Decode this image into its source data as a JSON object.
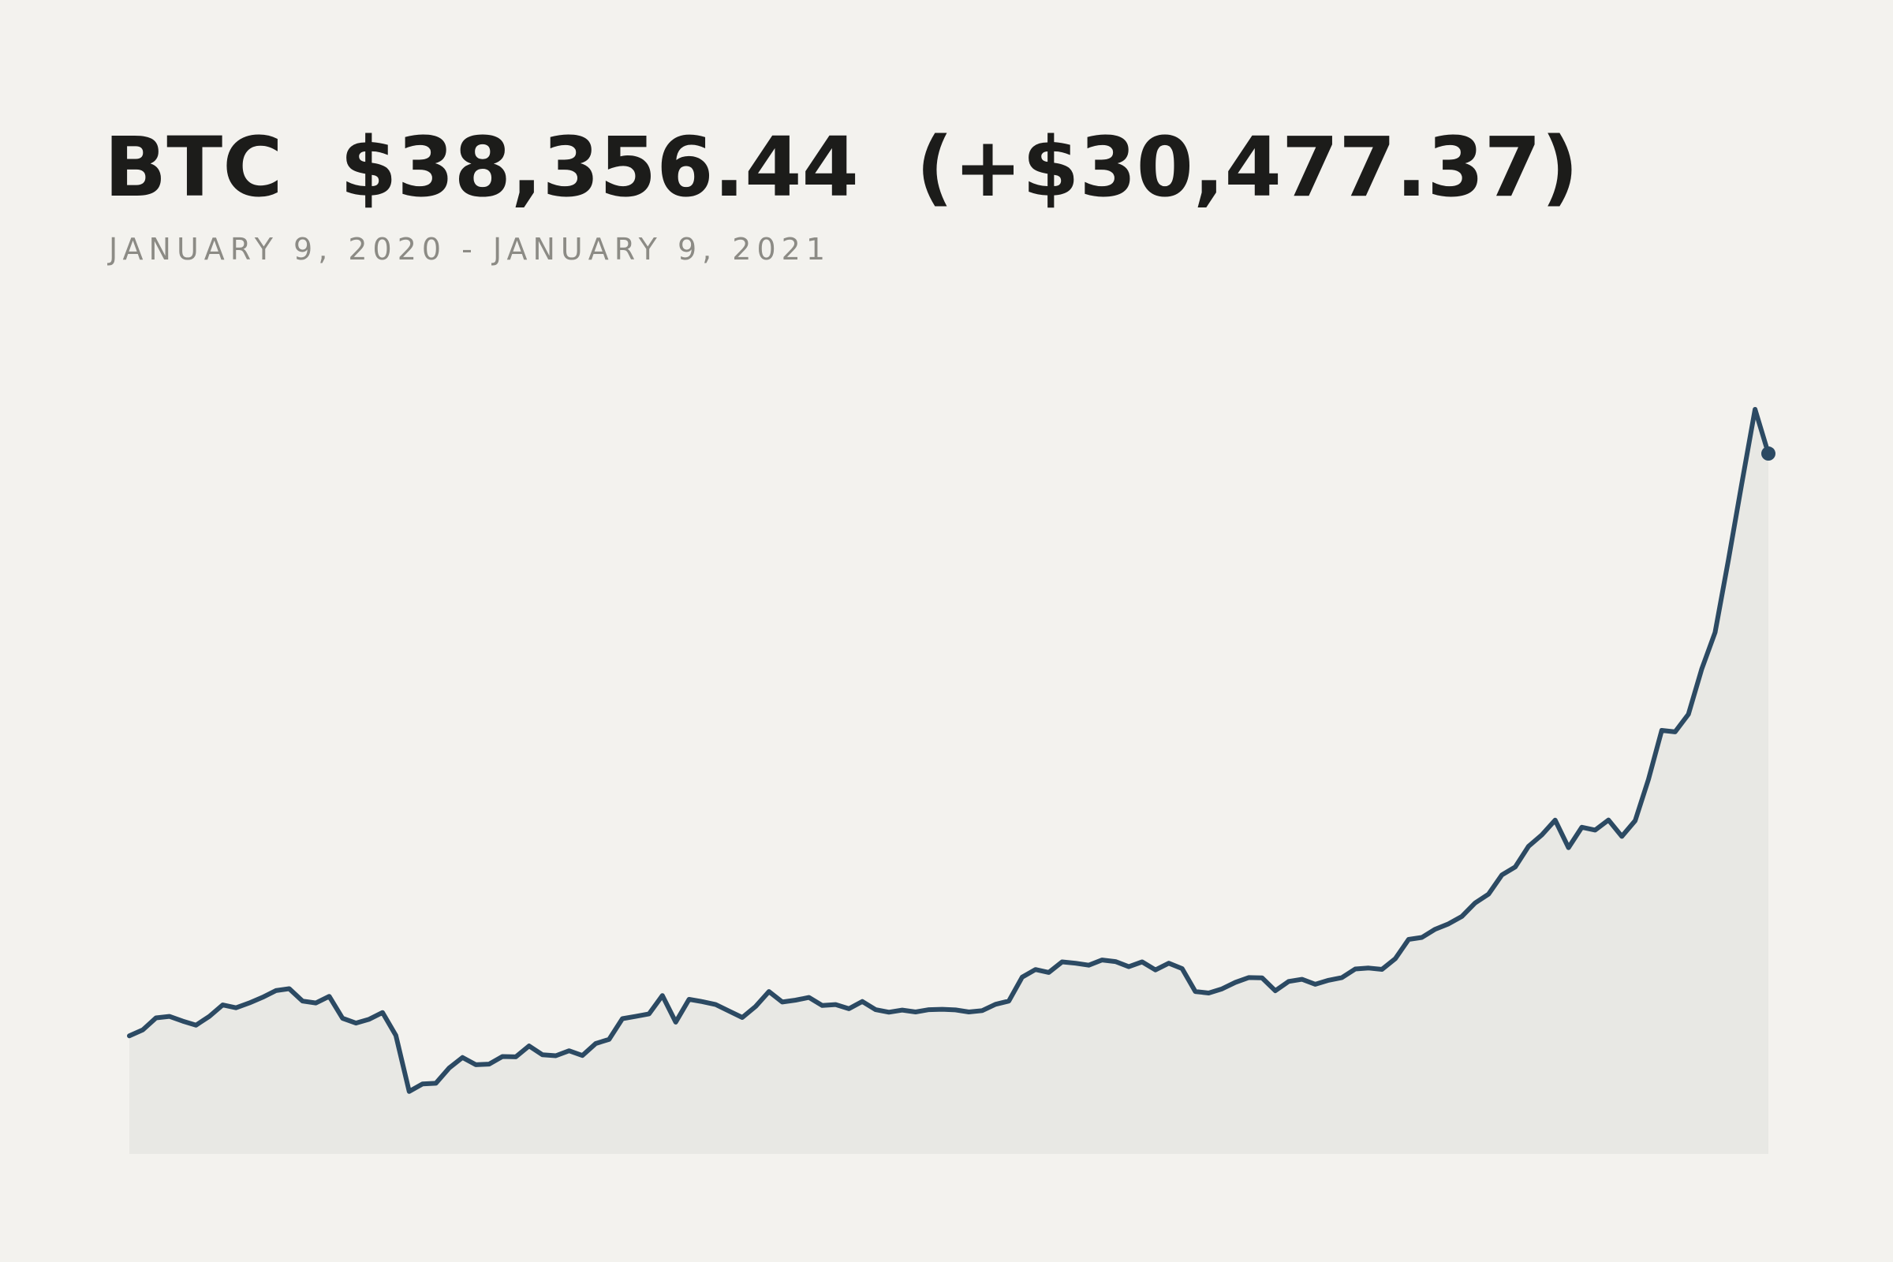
{
  "chart_data": {
    "type": "area",
    "title": "BTC  $38,356.44  (+$30,477.37)",
    "subtitle": "JANUARY 9, 2020 - JANUARY 9, 2021",
    "color": "#2c4a63",
    "fill": "#e8e8e4",
    "ylim": [
      1700,
      41000
    ],
    "values": [
      7879,
      8190,
      8820,
      8900,
      8650,
      8440,
      8900,
      9500,
      9350,
      9600,
      9900,
      10250,
      10350,
      9700,
      9600,
      9950,
      8800,
      8550,
      8750,
      9100,
      7900,
      4970,
      5360,
      5400,
      6200,
      6750,
      6370,
      6400,
      6800,
      6780,
      7350,
      6890,
      6840,
      7100,
      6850,
      7480,
      7700,
      8780,
      8900,
      9030,
      9990,
      8600,
      9790,
      9670,
      9520,
      9180,
      8840,
      9420,
      10200,
      9650,
      9750,
      9890,
      9470,
      9520,
      9300,
      9680,
      9250,
      9120,
      9230,
      9130,
      9250,
      9270,
      9240,
      9130,
      9200,
      9530,
      9700,
      10950,
      11350,
      11200,
      11750,
      11680,
      11580,
      11850,
      11770,
      11500,
      11750,
      11330,
      11680,
      11400,
      10200,
      10120,
      10340,
      10680,
      10930,
      10920,
      10240,
      10730,
      10840,
      10580,
      10790,
      10930,
      11380,
      11430,
      11360,
      11920,
      12930,
      13030,
      13460,
      13740,
      14130,
      14840,
      15300,
      16300,
      16720,
      17800,
      18400,
      19170,
      17730,
      18800,
      18650,
      19180,
      18320,
      19140,
      21310,
      23870,
      23790,
      24710,
      27080,
      28990,
      32780,
      36770,
      40670,
      38356.44
    ]
  }
}
